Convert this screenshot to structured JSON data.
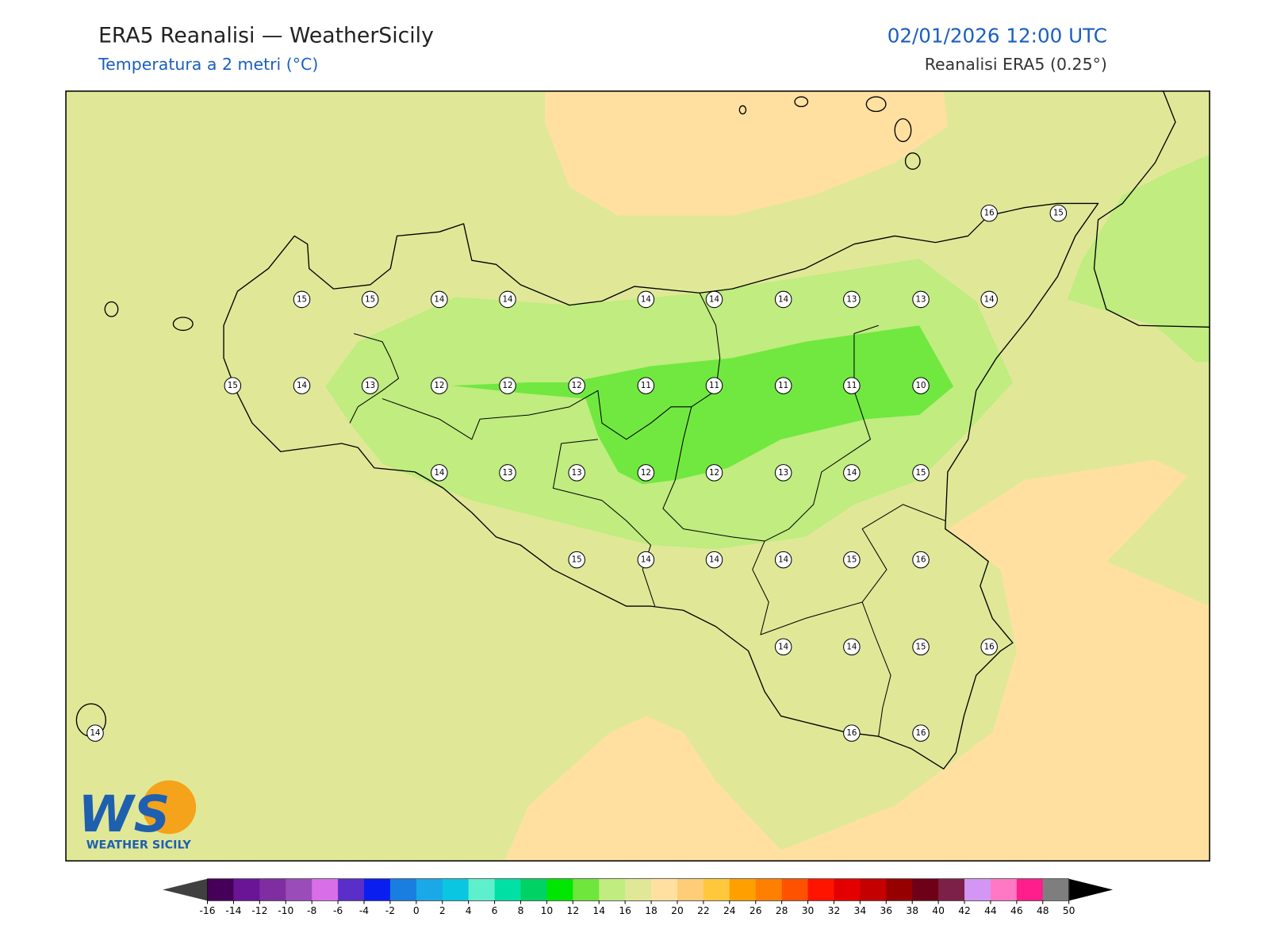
{
  "header": {
    "title": "ERA5 Reanalisi — WeatherSicily",
    "subtitle": "Temperatura a 2 metri (°C)",
    "datetime": "02/01/2026 12:00 UTC",
    "source": "Reanalisi ERA5 (0.25°)"
  },
  "map": {
    "station_values": [
      16,
      15,
      15,
      15,
      14,
      14,
      14,
      14,
      14,
      13,
      13,
      14,
      15,
      14,
      13,
      12,
      12,
      12,
      11,
      11,
      11,
      11,
      10,
      14,
      13,
      13,
      12,
      12,
      13,
      14,
      15,
      15,
      14,
      14,
      14,
      15,
      16,
      14,
      14,
      15,
      16,
      14,
      16,
      16
    ]
  },
  "colorbar": {
    "ticks": [
      -16,
      -14,
      -12,
      -10,
      -8,
      -6,
      -4,
      -2,
      0,
      2,
      4,
      6,
      8,
      10,
      12,
      14,
      16,
      18,
      20,
      22,
      24,
      26,
      28,
      30,
      32,
      34,
      36,
      38,
      40,
      42,
      44,
      46,
      48,
      50
    ],
    "colors": [
      "#46005a",
      "#6a1596",
      "#7e2ea0",
      "#9a4cb8",
      "#d86ee8",
      "#5a2ec8",
      "#0a1ef0",
      "#1a7ee0",
      "#1aa8e6",
      "#0ac6e0",
      "#5ef0cc",
      "#00e0a4",
      "#00d264",
      "#00e600",
      "#6ee63c",
      "#c0ec80",
      "#e0e898",
      "#ffe0a0",
      "#ffcc78",
      "#ffc83c",
      "#ffa000",
      "#ff8000",
      "#ff5200",
      "#ff1400",
      "#e40000",
      "#c40000",
      "#960000",
      "#6e0018",
      "#7c2048",
      "#d496f4",
      "#ff78c4",
      "#ff1e8c",
      "#7e7e7e"
    ],
    "under_color": "#404040",
    "over_color": "#000000"
  },
  "logo": {
    "mark": "WS",
    "name": "WEATHER SICILY"
  }
}
